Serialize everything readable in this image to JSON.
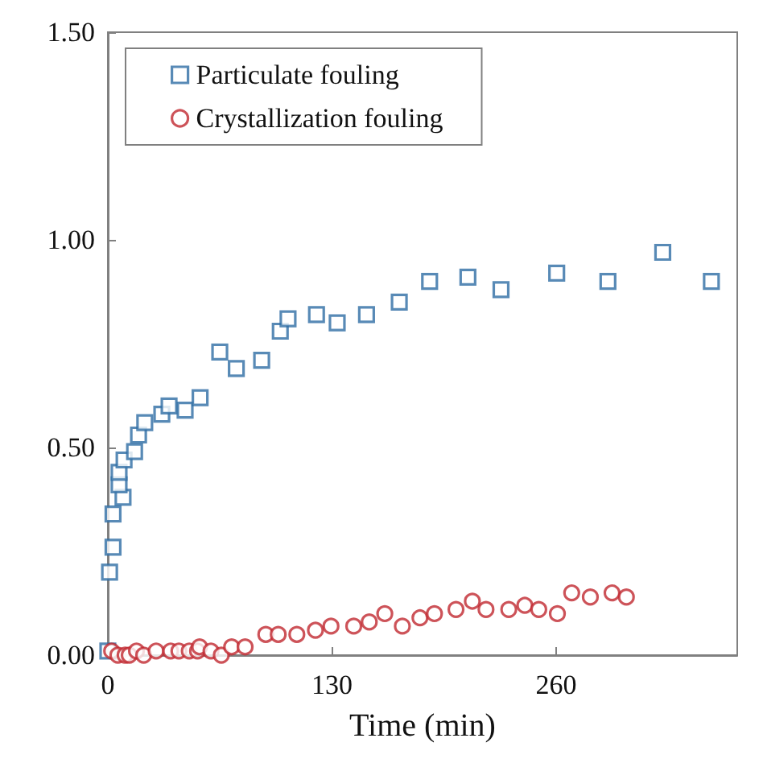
{
  "chart_data": {
    "type": "scatter",
    "xlabel": "Time (min)",
    "xlim": [
      0,
      365
    ],
    "xticks": [
      0,
      130,
      260
    ],
    "ylim": [
      0,
      1.5
    ],
    "yticks": [
      {
        "value": 0,
        "label": "0.00"
      },
      {
        "value": 0.5,
        "label": "0.50"
      },
      {
        "value": 1,
        "label": "1.00"
      },
      {
        "value": 1.5,
        "label": "1.50"
      }
    ],
    "grid": false,
    "legend": "top left",
    "series": [
      {
        "name": "Particulate fouling",
        "color": "#2e6da4",
        "marker": "square",
        "x": [
          0,
          1,
          3,
          3,
          8.8,
          6.5,
          6.5,
          9.4,
          15.5,
          17.8,
          21.4,
          31.3,
          35.5,
          44.8,
          53.5,
          64.9,
          74.5,
          89.2,
          100,
          104.5,
          121,
          133,
          150,
          169,
          186.6,
          208.8,
          228,
          260.3,
          290,
          321.8,
          350
        ],
        "values": [
          0.01,
          0.2,
          0.26,
          0.34,
          0.38,
          0.41,
          0.44,
          0.47,
          0.49,
          0.53,
          0.56,
          0.58,
          0.6,
          0.59,
          0.62,
          0.73,
          0.69,
          0.71,
          0.78,
          0.81,
          0.82,
          0.8,
          0.82,
          0.85,
          0.9,
          0.91,
          0.88,
          0.92,
          0.9,
          0.97,
          0.9
        ]
      },
      {
        "name": "Crystallization fouling",
        "color": "#c0282f",
        "marker": "circle",
        "x": [
          2.2,
          5.8,
          10,
          12.4,
          16.6,
          20.8,
          28,
          36.4,
          41.2,
          47.2,
          52,
          53.2,
          59.8,
          65.8,
          71.8,
          79.6,
          91.6,
          98.8,
          109.6,
          120.4,
          129.4,
          142.6,
          151.6,
          160.6,
          170.8,
          181,
          189.4,
          201.9,
          211.4,
          219.3,
          232.5,
          241.8,
          249.9,
          260.7,
          269,
          279.8,
          292.4,
          300.7
        ],
        "values": [
          0.01,
          0,
          0,
          0,
          0.01,
          0,
          0.01,
          0.01,
          0.01,
          0.01,
          0.01,
          0.02,
          0.01,
          0,
          0.02,
          0.02,
          0.05,
          0.05,
          0.05,
          0.06,
          0.07,
          0.07,
          0.08,
          0.1,
          0.07,
          0.09,
          0.1,
          0.11,
          0.13,
          0.11,
          0.11,
          0.12,
          0.11,
          0.1,
          0.15,
          0.14,
          0.15,
          0.14
        ]
      }
    ]
  }
}
